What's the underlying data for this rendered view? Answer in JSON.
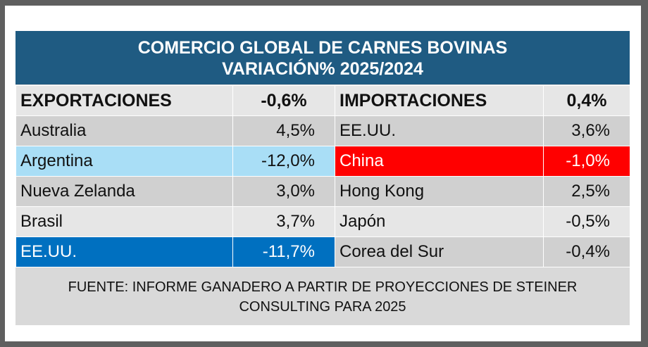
{
  "title": {
    "line1": "COMERCIO GLOBAL DE CARNES BOVINAS",
    "line2": "VARIACIÓN% 2025/2024"
  },
  "headers": {
    "exports_label": "EXPORTACIONES",
    "exports_value": "-0,6%",
    "imports_label": "IMPORTACIONES",
    "imports_value": "0,4%"
  },
  "rows": [
    {
      "export_country": "Australia",
      "export_value": "4,5%",
      "import_country": "EE.UU.",
      "import_value": "3,6%"
    },
    {
      "export_country": "Argentina",
      "export_value": "-12,0%",
      "import_country": "China",
      "import_value": "-1,0%"
    },
    {
      "export_country": "Nueva Zelanda",
      "export_value": "3,0%",
      "import_country": "Hong Kong",
      "import_value": "2,5%"
    },
    {
      "export_country": "Brasil",
      "export_value": "3,7%",
      "import_country": "Japón",
      "import_value": "-0,5%"
    },
    {
      "export_country": "EE.UU.",
      "export_value": "-11,7%",
      "import_country": "Corea del Sur",
      "import_value": "-0,4%"
    }
  ],
  "source": {
    "line1": "FUENTE: INFORME GANADERO A PARTIR DE PROYECCIONES DE STEINER",
    "line2": "CONSULTING PARA 2025"
  },
  "colors": {
    "title_bg": "#1f5b82",
    "argentina_highlight": "#a9def6",
    "china_highlight": "#ff0000",
    "usa_export_highlight": "#0070c0"
  }
}
